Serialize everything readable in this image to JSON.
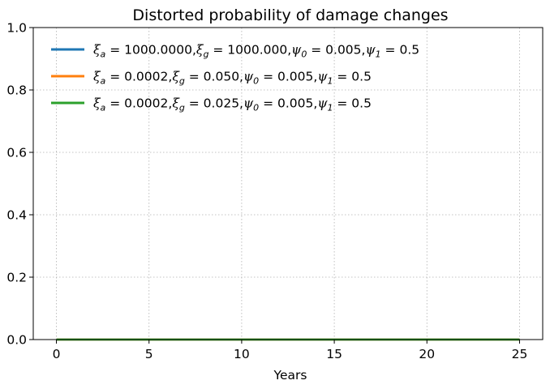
{
  "chart_data": {
    "type": "line",
    "title": "Distorted probability of damage changes",
    "xlabel": "Years",
    "ylabel": "",
    "xlim": [
      -1.25,
      26.25
    ],
    "ylim": [
      0,
      1
    ],
    "xticks": [
      0,
      5,
      10,
      15,
      20,
      25
    ],
    "yticks": [
      0.0,
      0.2,
      0.4,
      0.6,
      0.8,
      1.0
    ],
    "xtick_labels": [
      "0",
      "5",
      "10",
      "15",
      "20",
      "25"
    ],
    "ytick_labels": [
      "0.0",
      "0.2",
      "0.4",
      "0.6",
      "0.8",
      "1.0"
    ],
    "grid": true,
    "legend_position": "top-left",
    "series": [
      {
        "name": "ξa = 1000.0000, ξg = 1000.000, ψ0 = 0.005, ψ1 = 0.5",
        "legend_parts": {
          "xi_a": "1000.0000",
          "xi_g": "1000.000",
          "psi_0": "0.005",
          "psi_1": "0.5"
        },
        "color": "#1f77b4",
        "x": [
          0,
          5,
          10,
          15,
          20,
          25
        ],
        "values": [
          0,
          0,
          0,
          0,
          0,
          0
        ]
      },
      {
        "name": "ξa = 0.0002, ξg = 0.050, ψ0 = 0.005, ψ1 = 0.5",
        "legend_parts": {
          "xi_a": "0.0002",
          "xi_g": "0.050",
          "psi_0": "0.005",
          "psi_1": "0.5"
        },
        "color": "#ff7f0e",
        "x": [
          0,
          5,
          10,
          15,
          20,
          25
        ],
        "values": [
          0,
          0,
          0,
          0,
          0,
          0
        ]
      },
      {
        "name": "ξa = 0.0002, ξg = 0.025, ψ0 = 0.005, ψ1 = 0.5",
        "legend_parts": {
          "xi_a": "0.0002",
          "xi_g": "0.025",
          "psi_0": "0.005",
          "psi_1": "0.5"
        },
        "color": "#2ca02c",
        "x": [
          0,
          5,
          10,
          15,
          20,
          25
        ],
        "values": [
          0,
          0,
          0,
          0,
          0,
          0
        ]
      }
    ]
  }
}
